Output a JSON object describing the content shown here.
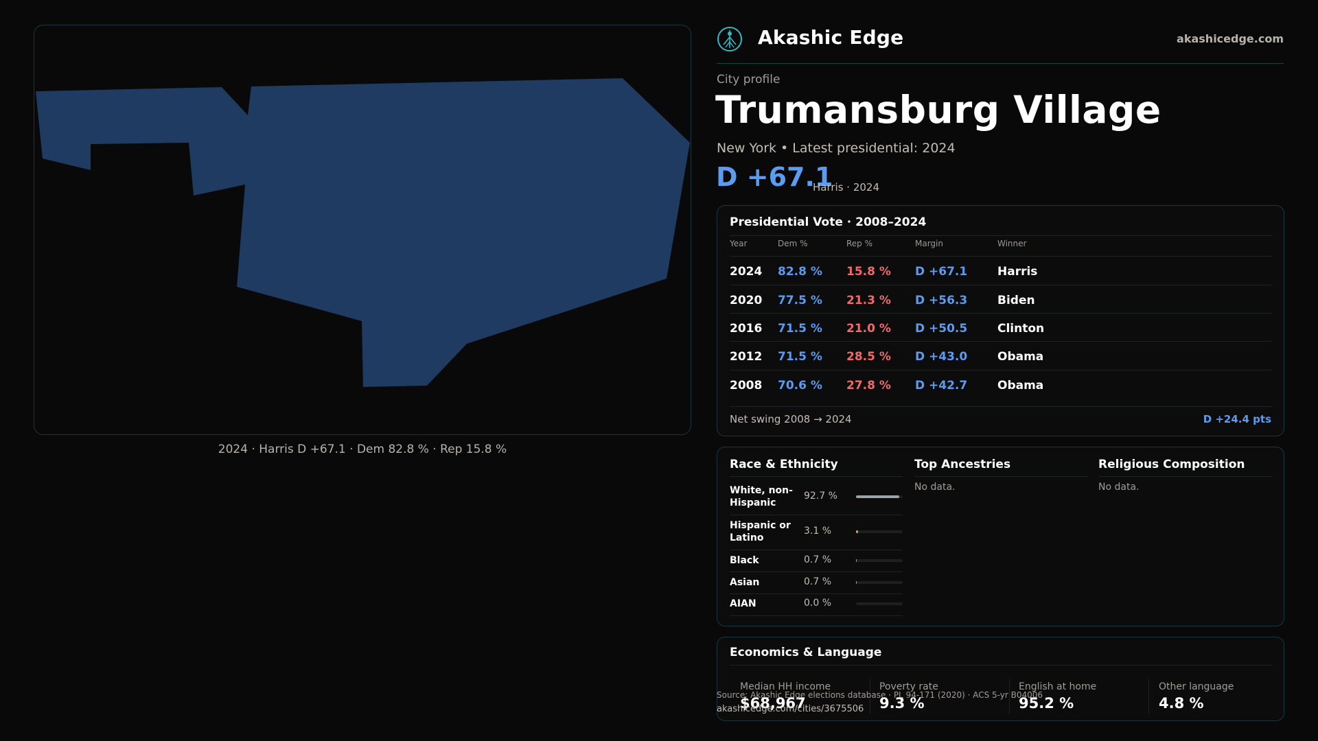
{
  "brand": {
    "name": "Akashic Edge",
    "url": "akashicedge.com",
    "logo_icon": "tree-of-life-icon",
    "accent": "#35b7c4"
  },
  "profile": {
    "label": "City profile",
    "city": "Trumansburg Village",
    "subtitle": "New York  • Latest presidential: 2024",
    "margin": "D +67.1",
    "margin_note": "Harris · 2024"
  },
  "map": {
    "caption": "2024 · Harris D +67.1 · Dem 82.8 % · Rep 15.8 %",
    "fill": "#1f3b61"
  },
  "vote": {
    "title": "Presidential Vote · 2008–2024",
    "headers": {
      "year": "Year",
      "dem": "Dem %",
      "rep": "Rep %",
      "margin": "Margin",
      "winner": "Winner"
    },
    "rows": [
      {
        "year": "2024",
        "dem": "82.8 %",
        "rep": "15.8 %",
        "margin": "D +67.1",
        "winner": "Harris"
      },
      {
        "year": "2020",
        "dem": "77.5 %",
        "rep": "21.3 %",
        "margin": "D +56.3",
        "winner": "Biden"
      },
      {
        "year": "2016",
        "dem": "71.5 %",
        "rep": "21.0 %",
        "margin": "D +50.5",
        "winner": "Clinton"
      },
      {
        "year": "2012",
        "dem": "71.5 %",
        "rep": "28.5 %",
        "margin": "D +43.0",
        "winner": "Obama"
      },
      {
        "year": "2008",
        "dem": "70.6 %",
        "rep": "27.8 %",
        "margin": "D +42.7",
        "winner": "Obama"
      }
    ],
    "swing_label": "Net swing 2008 → 2024",
    "swing_value": "D +24.4 pts",
    "dem_color": "#5b9bf0",
    "rep_color": "#f06a6a"
  },
  "race": {
    "title": "Race & Ethnicity",
    "rows": [
      {
        "label": "White, non-Hispanic",
        "pct": "92.7 %",
        "share": 0.927,
        "color": "#9aa3ad"
      },
      {
        "label": "Hispanic or Latino",
        "pct": "3.1 %",
        "share": 0.031,
        "color": "#e0a33a"
      },
      {
        "label": "Black",
        "pct": "0.7 %",
        "share": 0.007,
        "color": "#9aa3ad"
      },
      {
        "label": "Asian",
        "pct": "0.7 %",
        "share": 0.007,
        "color": "#9aa3ad"
      },
      {
        "label": "AIAN",
        "pct": "0.0 %",
        "share": 0.0,
        "color": "#9aa3ad"
      }
    ]
  },
  "ancestries": {
    "title": "Top Ancestries",
    "empty": "No data."
  },
  "religion": {
    "title": "Religious Composition",
    "empty": "No data."
  },
  "economics": {
    "title": "Economics & Language",
    "items": [
      {
        "label": "Median HH income",
        "value": "$68,967"
      },
      {
        "label": "Poverty rate",
        "value": "9.3 %"
      },
      {
        "label": "English at home",
        "value": "95.2 %"
      },
      {
        "label": "Other language",
        "value": "4.8 %"
      }
    ]
  },
  "footer": {
    "source": "Source: Akashic Edge elections database · PL 94-171 (2020) · ACS 5-yr B04006",
    "url": "akashicedge.com/cities/3675506"
  }
}
